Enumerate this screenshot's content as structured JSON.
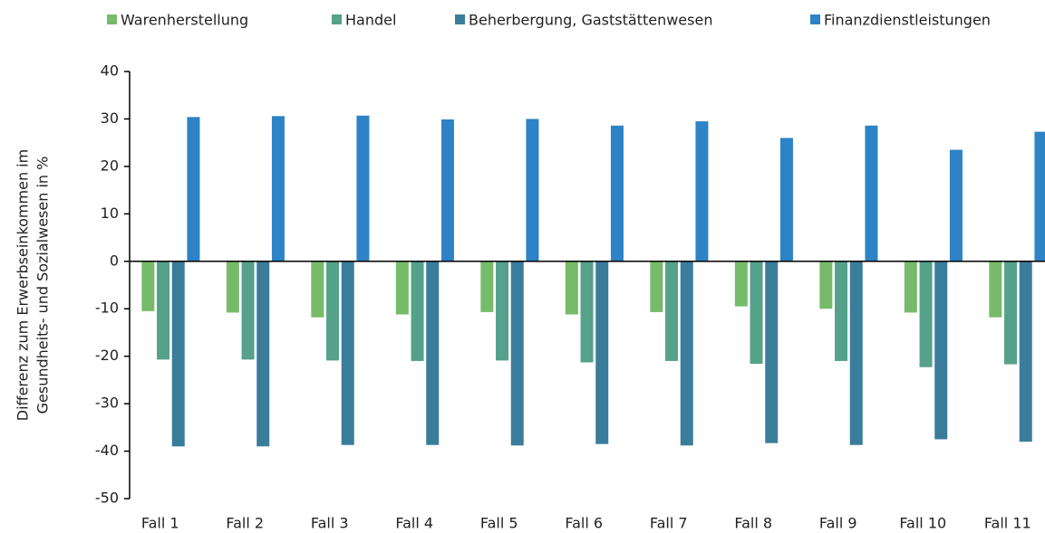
{
  "chart_data": {
    "type": "bar",
    "ylabel": [
      "Differenz zum Erwerbseinkommen im",
      "Gesundheits- und Sozialwesen in %"
    ],
    "categories": [
      "Fall 1",
      "Fall 2",
      "Fall 3",
      "Fall 4",
      "Fall 5",
      "Fall 6",
      "Fall 7",
      "Fall 8",
      "Fall 9",
      "Fall 10",
      "Fall 11"
    ],
    "series": [
      {
        "name": "Warenherstellung",
        "color": "#77bb6a",
        "values": [
          -10.5,
          -10.8,
          -11.8,
          -11.2,
          -10.7,
          -11.2,
          -10.7,
          -9.5,
          -10,
          -10.8,
          -11.8
        ]
      },
      {
        "name": "Handel",
        "color": "#55a18a",
        "values": [
          -20.7,
          -20.7,
          -20.9,
          -21,
          -20.9,
          -21.3,
          -21,
          -21.6,
          -21,
          -22.3,
          -21.7
        ]
      },
      {
        "name": "Beherbergung, Gaststättenwesen",
        "color": "#3a7d9b",
        "values": [
          -39,
          -39,
          -38.7,
          -38.7,
          -38.8,
          -38.5,
          -38.8,
          -38.3,
          -38.7,
          -37.5,
          -38
        ]
      },
      {
        "name": "Finanzdienstleistungen",
        "color": "#2d83c6",
        "values": [
          30.4,
          30.6,
          30.7,
          29.9,
          30,
          28.6,
          29.5,
          26,
          28.6,
          23.5,
          27.3
        ]
      }
    ],
    "ylim": [
      -50,
      40
    ],
    "yticks": [
      -50,
      -40,
      -30,
      -20,
      -10,
      0,
      10,
      20,
      30,
      40
    ],
    "legend": "top"
  }
}
